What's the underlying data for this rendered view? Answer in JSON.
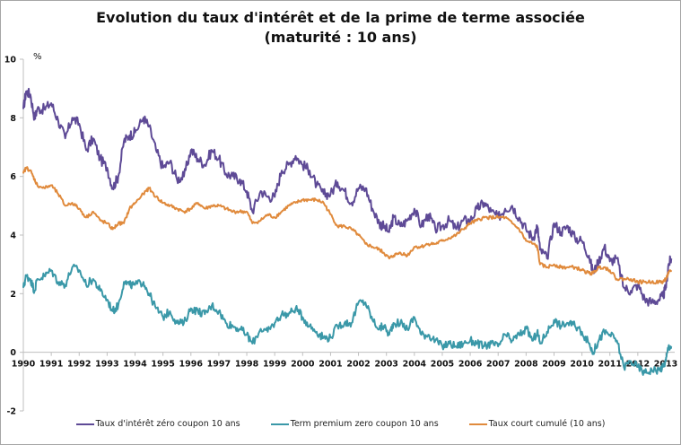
{
  "chart_data": {
    "type": "line",
    "title": "Evolution du taux d'intérêt et de la prime de terme associée",
    "subtitle": "(maturité : 10 ans)",
    "xlabel": "",
    "ylabel": "%",
    "xlim": [
      1990,
      2013.25
    ],
    "ylim": [
      -2,
      10
    ],
    "x_ticks": [
      "1990",
      "1991",
      "1992",
      "1993",
      "1994",
      "1995",
      "1996",
      "1997",
      "1998",
      "1999",
      "2000",
      "2001",
      "2002",
      "2003",
      "2004",
      "2005",
      "2006",
      "2007",
      "2008",
      "2009",
      "2010",
      "2011",
      "2012",
      "2013"
    ],
    "y_ticks": [
      "-2",
      "0",
      "2",
      "4",
      "6",
      "8",
      "10"
    ],
    "grid": false,
    "legend_position": "bottom",
    "x": [
      1990.0,
      1990.1,
      1990.25,
      1990.4,
      1990.5,
      1990.75,
      1991.0,
      1991.25,
      1991.5,
      1991.75,
      1992.0,
      1992.25,
      1992.5,
      1992.75,
      1993.0,
      1993.2,
      1993.4,
      1993.6,
      1993.8,
      1994.0,
      1994.3,
      1994.5,
      1994.75,
      1995.0,
      1995.25,
      1995.5,
      1995.75,
      1996.0,
      1996.25,
      1996.5,
      1996.75,
      1997.0,
      1997.25,
      1997.5,
      1997.75,
      1998.0,
      1998.2,
      1998.5,
      1998.75,
      1999.0,
      1999.25,
      1999.5,
      1999.75,
      2000.0,
      2000.25,
      2000.5,
      2000.75,
      2001.0,
      2001.25,
      2001.5,
      2001.75,
      2002.0,
      2002.25,
      2002.5,
      2002.75,
      2002.9,
      2003.1,
      2003.25,
      2003.5,
      2003.75,
      2004.0,
      2004.25,
      2004.5,
      2004.75,
      2005.0,
      2005.25,
      2005.5,
      2005.75,
      2006.0,
      2006.25,
      2006.5,
      2006.75,
      2007.0,
      2007.25,
      2007.5,
      2007.75,
      2008.0,
      2008.25,
      2008.4,
      2008.5,
      2008.75,
      2009.0,
      2009.25,
      2009.5,
      2009.75,
      2010.0,
      2010.25,
      2010.4,
      2010.6,
      2010.8,
      2011.0,
      2011.25,
      2011.5,
      2011.75,
      2012.0,
      2012.25,
      2012.5,
      2012.75,
      2012.9,
      2013.0,
      2013.1,
      2013.2
    ],
    "series": [
      {
        "name": "Taux d'intérêt zéro coupon 10 ans",
        "color": "#5e4a96",
        "values": [
          8.3,
          8.9,
          8.8,
          8.0,
          8.3,
          8.3,
          8.5,
          7.9,
          7.3,
          8.0,
          7.8,
          6.9,
          7.3,
          6.6,
          6.3,
          5.6,
          6.0,
          7.2,
          7.4,
          7.5,
          8.0,
          7.7,
          6.9,
          6.3,
          6.5,
          5.9,
          6.0,
          6.9,
          6.6,
          6.4,
          6.9,
          6.6,
          6.1,
          6.0,
          5.9,
          5.5,
          4.8,
          5.5,
          5.3,
          5.3,
          6.2,
          6.4,
          6.7,
          6.4,
          6.2,
          5.7,
          5.4,
          5.4,
          5.8,
          5.5,
          5.1,
          5.6,
          5.6,
          4.9,
          4.4,
          4.3,
          4.1,
          4.6,
          4.3,
          4.5,
          4.9,
          4.3,
          4.7,
          4.2,
          4.3,
          4.5,
          4.2,
          4.5,
          4.5,
          4.9,
          5.1,
          4.8,
          4.6,
          4.9,
          5.0,
          4.6,
          4.2,
          3.9,
          4.3,
          3.5,
          3.2,
          4.4,
          4.1,
          4.3,
          3.9,
          3.8,
          3.3,
          2.7,
          3.1,
          3.6,
          3.1,
          3.2,
          2.2,
          2.1,
          2.3,
          1.8,
          1.7,
          1.8,
          1.9,
          2.2,
          3.0,
          3.2
        ]
      },
      {
        "name": "Term premium zero coupon 10 ans",
        "color": "#3a98a8",
        "values": [
          2.2,
          2.6,
          2.5,
          2.1,
          2.5,
          2.6,
          2.8,
          2.4,
          2.3,
          2.9,
          2.8,
          2.3,
          2.5,
          2.1,
          1.8,
          1.4,
          1.6,
          2.4,
          2.3,
          2.3,
          2.4,
          2.0,
          1.5,
          1.2,
          1.4,
          1.0,
          1.0,
          1.5,
          1.4,
          1.3,
          1.6,
          1.4,
          1.0,
          0.9,
          0.8,
          0.6,
          0.3,
          0.8,
          0.7,
          1.0,
          1.3,
          1.3,
          1.5,
          1.2,
          0.9,
          0.7,
          0.5,
          0.5,
          0.9,
          1.0,
          1.0,
          1.7,
          1.7,
          1.1,
          0.8,
          0.9,
          0.6,
          1.0,
          1.0,
          0.8,
          1.2,
          0.6,
          0.6,
          0.4,
          0.2,
          0.3,
          0.2,
          0.3,
          0.4,
          0.3,
          0.2,
          0.3,
          0.2,
          0.6,
          0.4,
          0.6,
          0.8,
          0.4,
          0.7,
          0.3,
          0.7,
          1.1,
          0.9,
          1.0,
          0.9,
          0.7,
          0.3,
          0.0,
          0.4,
          0.7,
          0.6,
          0.4,
          -0.5,
          -0.3,
          -0.5,
          -0.7,
          -0.6,
          -0.6,
          -0.5,
          -0.3,
          0.2,
          0.2
        ]
      },
      {
        "name": "Taux court cumulé (10 ans)",
        "color": "#e08a3c",
        "values": [
          6.1,
          6.3,
          6.2,
          5.9,
          5.7,
          5.6,
          5.7,
          5.4,
          5.0,
          5.1,
          4.9,
          4.6,
          4.8,
          4.5,
          4.4,
          4.2,
          4.4,
          4.4,
          4.9,
          5.1,
          5.4,
          5.6,
          5.3,
          5.1,
          5.0,
          4.9,
          4.8,
          4.9,
          5.1,
          4.9,
          5.0,
          5.0,
          4.9,
          4.8,
          4.8,
          4.8,
          4.4,
          4.5,
          4.7,
          4.6,
          4.8,
          5.0,
          5.1,
          5.2,
          5.2,
          5.2,
          5.1,
          4.7,
          4.3,
          4.3,
          4.2,
          4.0,
          3.7,
          3.6,
          3.5,
          3.4,
          3.2,
          3.3,
          3.4,
          3.3,
          3.6,
          3.6,
          3.7,
          3.7,
          3.8,
          3.9,
          4.0,
          4.2,
          4.4,
          4.5,
          4.6,
          4.6,
          4.6,
          4.6,
          4.4,
          4.2,
          3.8,
          3.7,
          3.6,
          3.0,
          2.9,
          3.0,
          2.9,
          2.9,
          2.9,
          2.8,
          2.7,
          2.7,
          2.9,
          2.9,
          2.8,
          2.5,
          2.5,
          2.5,
          2.4,
          2.4,
          2.4,
          2.4,
          2.4,
          2.5,
          2.7,
          2.8
        ]
      }
    ]
  }
}
